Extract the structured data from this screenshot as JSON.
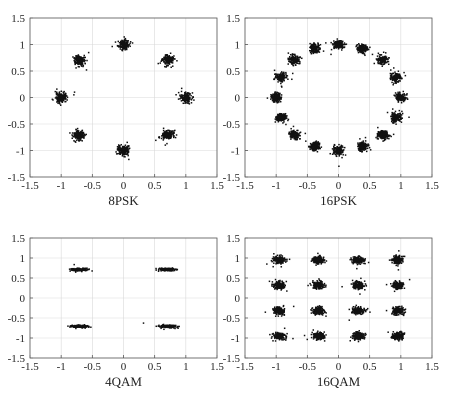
{
  "chart_data": [
    {
      "type": "scatter",
      "caption": "8PSK",
      "xlim": [
        -1.5,
        1.5
      ],
      "ylim": [
        -1.5,
        1.5
      ],
      "xticks": [
        -1.5,
        -1,
        -0.5,
        0,
        0.5,
        1,
        1.5
      ],
      "yticks": [
        -1.5,
        -1,
        -0.5,
        0,
        0.5,
        1,
        1.5
      ],
      "xtick_labels": [
        "-1.5",
        "-1",
        "-0.5",
        "0",
        "0.5",
        "1",
        "1.5"
      ],
      "ytick_labels": [
        "-1.5",
        "-1",
        "-0.5",
        "0",
        "0.5",
        "1",
        "1.5"
      ],
      "grid": true,
      "clusters": [
        {
          "x": 1,
          "y": 0
        },
        {
          "x": 0.71,
          "y": 0.71
        },
        {
          "x": 0,
          "y": 1
        },
        {
          "x": -0.71,
          "y": 0.71
        },
        {
          "x": -1,
          "y": 0
        },
        {
          "x": -0.71,
          "y": -0.71
        },
        {
          "x": 0,
          "y": -1
        },
        {
          "x": 0.71,
          "y": -0.71
        }
      ],
      "spread": {
        "x": 0.045,
        "y": 0.045
      }
    },
    {
      "type": "scatter",
      "caption": "16PSK",
      "xlim": [
        -1.5,
        1.5
      ],
      "ylim": [
        -1.5,
        1.5
      ],
      "xticks": [
        -1.5,
        -1,
        -0.5,
        0,
        0.5,
        1,
        1.5
      ],
      "yticks": [
        -1.5,
        -1,
        -0.5,
        0,
        0.5,
        1,
        1.5
      ],
      "xtick_labels": [
        "-1.5",
        "-1",
        "-0.5",
        "0",
        "0.5",
        "1",
        "1.5"
      ],
      "ytick_labels": [
        "-1.5",
        "-1",
        "-0.5",
        "0",
        "0.5",
        "1",
        "1.5"
      ],
      "grid": true,
      "clusters": [
        {
          "x": 1,
          "y": 0
        },
        {
          "x": 0.92,
          "y": 0.38
        },
        {
          "x": 0.71,
          "y": 0.71
        },
        {
          "x": 0.38,
          "y": 0.92
        },
        {
          "x": 0,
          "y": 1
        },
        {
          "x": -0.38,
          "y": 0.92
        },
        {
          "x": -0.71,
          "y": 0.71
        },
        {
          "x": -0.92,
          "y": 0.38
        },
        {
          "x": -1,
          "y": 0
        },
        {
          "x": -0.92,
          "y": -0.38
        },
        {
          "x": -0.71,
          "y": -0.71
        },
        {
          "x": -0.38,
          "y": -0.92
        },
        {
          "x": 0,
          "y": -1
        },
        {
          "x": 0.38,
          "y": -0.92
        },
        {
          "x": 0.71,
          "y": -0.71
        },
        {
          "x": 0.92,
          "y": -0.38
        }
      ],
      "spread": {
        "x": 0.04,
        "y": 0.04
      }
    },
    {
      "type": "scatter",
      "caption": "4QAM",
      "xlim": [
        -1.5,
        1.5
      ],
      "ylim": [
        -1.5,
        1.5
      ],
      "xticks": [
        -1.5,
        -1,
        -0.5,
        0,
        0.5,
        1,
        1.5
      ],
      "yticks": [
        -1.5,
        -1,
        -0.5,
        0,
        0.5,
        1,
        1.5
      ],
      "xtick_labels": [
        "-1.5",
        "-1",
        "-0.5",
        "0",
        "0.5",
        "1",
        "1.5"
      ],
      "ytick_labels": [
        "-1.5",
        "-1",
        "-0.5",
        "0",
        "0.5",
        "1",
        "1.5"
      ],
      "grid": true,
      "clusters": [
        {
          "x": -0.71,
          "y": 0.71
        },
        {
          "x": 0.71,
          "y": 0.71
        },
        {
          "x": -0.71,
          "y": -0.71
        },
        {
          "x": 0.71,
          "y": -0.71
        }
      ],
      "spread": {
        "x": 0.065,
        "y": 0.015
      }
    },
    {
      "type": "scatter",
      "caption": "16QAM",
      "xlim": [
        -1.5,
        1.5
      ],
      "ylim": [
        -1.5,
        1.5
      ],
      "xticks": [
        -1.5,
        -1,
        -0.5,
        0,
        0.5,
        1,
        1.5
      ],
      "yticks": [
        -1.5,
        -1,
        -0.5,
        0,
        0.5,
        1,
        1.5
      ],
      "xtick_labels": [
        "-1.5",
        "-1",
        "-0.5",
        "0",
        "0.5",
        "1",
        "1.5"
      ],
      "ytick_labels": [
        "-1.5",
        "-1",
        "-0.5",
        "0",
        "0.5",
        "1",
        "1.5"
      ],
      "grid": true,
      "clusters": [
        {
          "x": -0.95,
          "y": 0.95
        },
        {
          "x": -0.32,
          "y": 0.95
        },
        {
          "x": 0.32,
          "y": 0.95
        },
        {
          "x": 0.95,
          "y": 0.95
        },
        {
          "x": -0.95,
          "y": 0.32
        },
        {
          "x": -0.32,
          "y": 0.32
        },
        {
          "x": 0.32,
          "y": 0.32
        },
        {
          "x": 0.95,
          "y": 0.32
        },
        {
          "x": -0.95,
          "y": -0.32
        },
        {
          "x": -0.32,
          "y": -0.32
        },
        {
          "x": 0.32,
          "y": -0.32
        },
        {
          "x": 0.95,
          "y": -0.32
        },
        {
          "x": -0.95,
          "y": -0.95
        },
        {
          "x": -0.32,
          "y": -0.95
        },
        {
          "x": 0.32,
          "y": -0.95
        },
        {
          "x": 0.95,
          "y": -0.95
        }
      ],
      "spread": {
        "x": 0.045,
        "y": 0.045
      }
    }
  ],
  "colors": {
    "points": "#111111",
    "grid": "#d9d9d9",
    "axes": "#555555",
    "text": "#222222"
  }
}
